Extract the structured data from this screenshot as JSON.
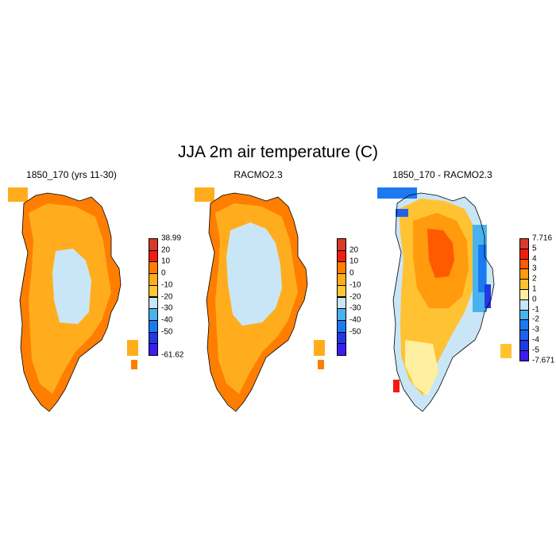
{
  "title": "JJA 2m air temperature (C)",
  "panels": [
    {
      "title": "1850_170 (yrs 11-30)",
      "colorbar": {
        "labels": [
          "38.99",
          "20",
          "10",
          "0",
          "-10",
          "-20",
          "-30",
          "-40",
          "-50",
          "-61.62"
        ],
        "colors": [
          "#d83b2c",
          "#f01d10",
          "#ff7e00",
          "#ffad1c",
          "#fcc731",
          "#c9e6f7",
          "#48b3ee",
          "#1b7af0",
          "#2437e6",
          "#3b1cf1"
        ]
      }
    },
    {
      "title": "RACMO2.3",
      "colorbar": {
        "labels": [
          "20",
          "10",
          "0",
          "-10",
          "-20",
          "-30",
          "-40",
          "-50"
        ],
        "colors": [
          "#d83b2c",
          "#f01d10",
          "#ff7e00",
          "#ffad1c",
          "#fcc731",
          "#c9e6f7",
          "#48b3ee",
          "#1b7af0",
          "#2437e6",
          "#3b1cf1"
        ]
      }
    },
    {
      "title": "1850_170 - RACMO2.3",
      "colorbar": {
        "labels": [
          "7.716",
          "5",
          "4",
          "3",
          "2",
          "1",
          "0",
          "-1",
          "-2",
          "-3",
          "-4",
          "-5",
          "-7.671"
        ],
        "colors": [
          "#d83b2c",
          "#f01d10",
          "#ff5a00",
          "#ff9b0c",
          "#ffc233",
          "#fff0a0",
          "#c9e6f7",
          "#48b3ee",
          "#1b7af0",
          "#2060f0",
          "#2437e6",
          "#3b1cf1"
        ]
      }
    }
  ]
}
